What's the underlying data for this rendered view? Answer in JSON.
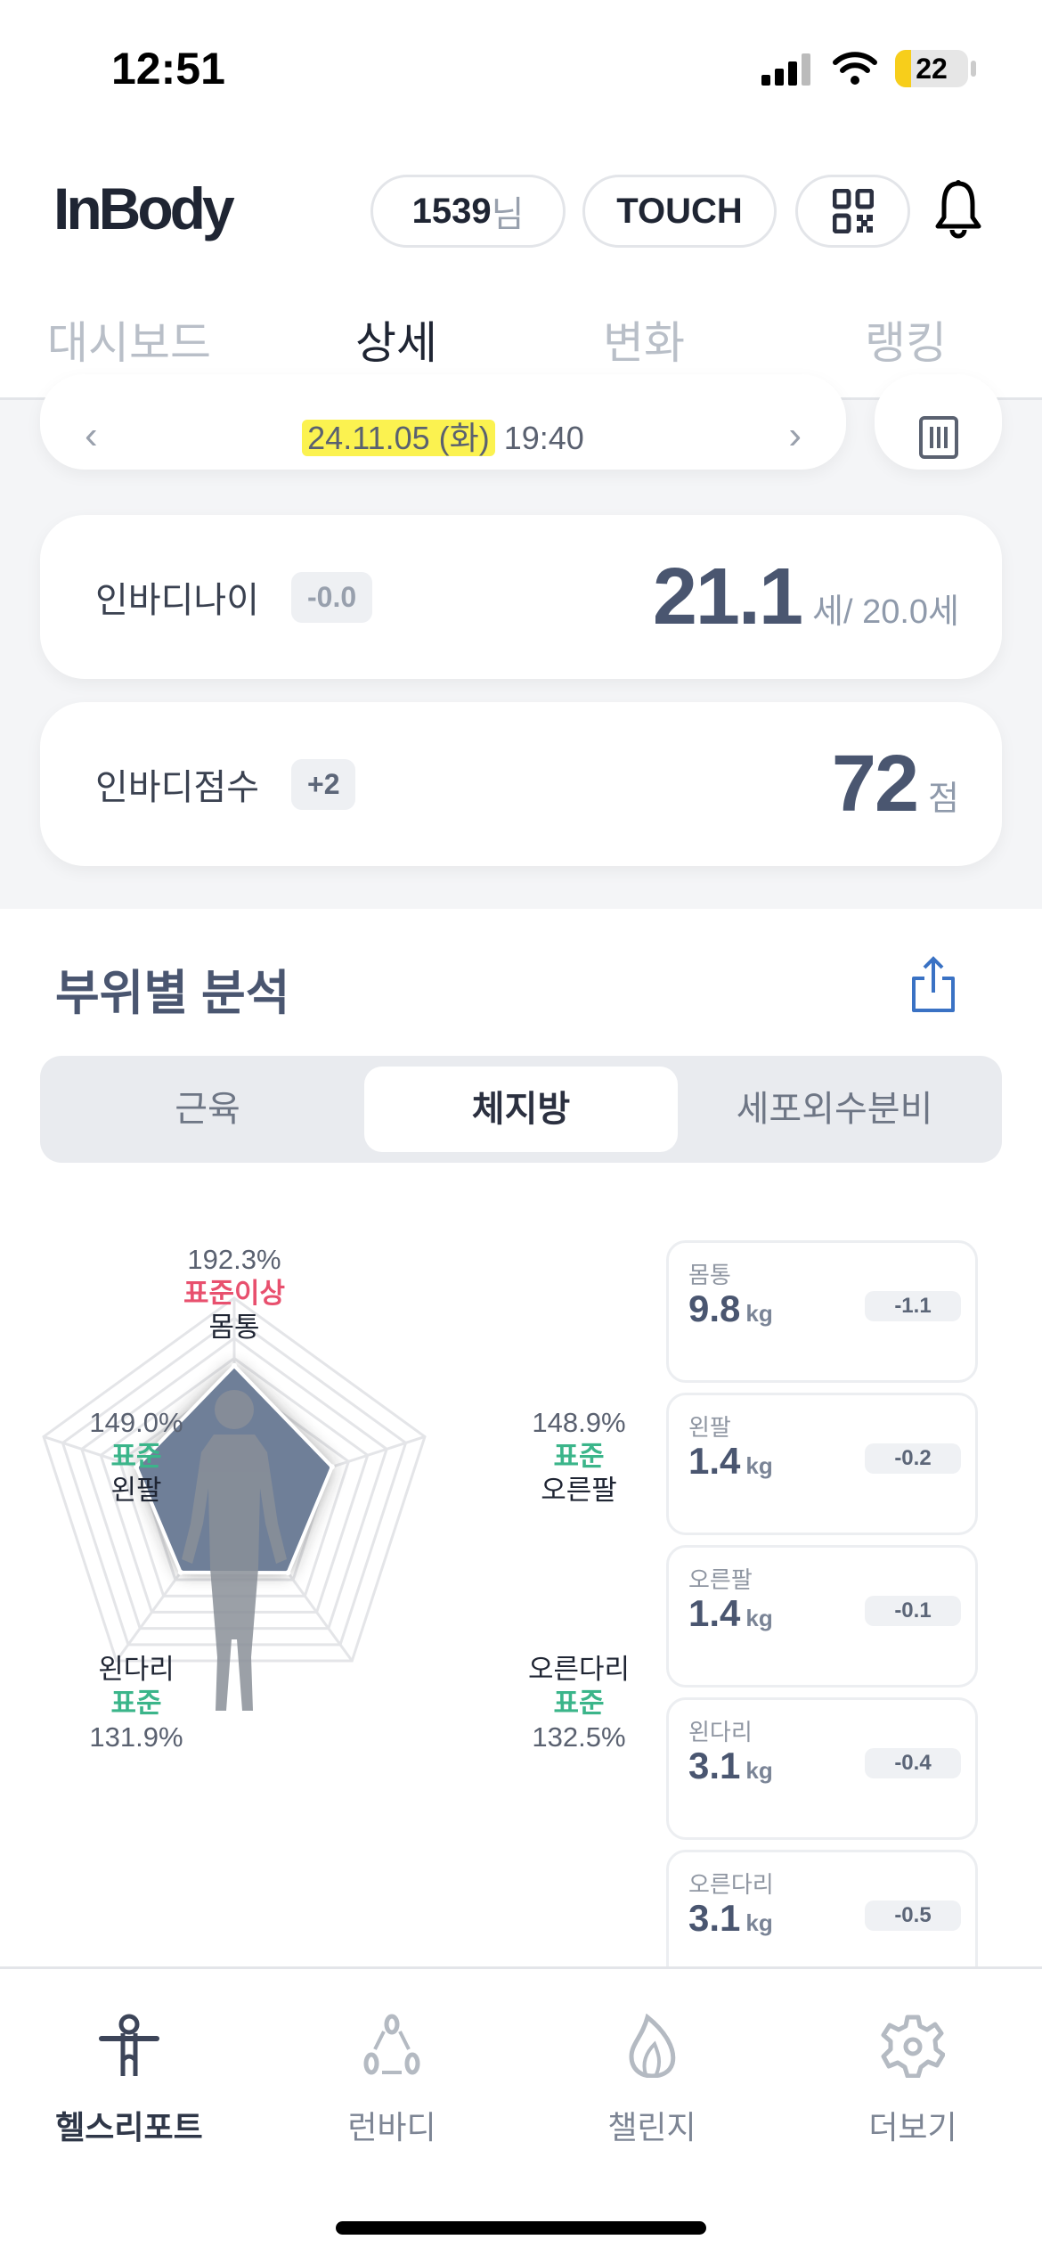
{
  "status_bar": {
    "time": "12:51",
    "battery": "22",
    "battery_level": 0.22
  },
  "header": {
    "logo": "InBody",
    "user_id": "1539",
    "user_suffix": "님",
    "touch_label": "TOUCH",
    "icons": [
      "qr-code-icon",
      "bell-icon"
    ]
  },
  "tabs": [
    {
      "label": "대시보드"
    },
    {
      "label": "상세",
      "active": true
    },
    {
      "label": "변화"
    },
    {
      "label": "랭킹"
    }
  ],
  "date_bar": {
    "date": "24.11.05 (화)",
    "time": "19:40",
    "highlight_color": "#fbf250"
  },
  "metrics": [
    {
      "label": "인바디나이",
      "delta": "-0.0",
      "value": "21.1",
      "unit": "세/ 20.0세"
    },
    {
      "label": "인바디점수",
      "delta": "+2",
      "value": "72",
      "unit": "점"
    }
  ],
  "section": {
    "title": "부위별 분석",
    "segments": [
      "근육",
      "체지방",
      "세포외수분비"
    ],
    "selected_segment": "체지방"
  },
  "chart_data": {
    "type": "radar",
    "axes": [
      {
        "name": "몸통",
        "percent": "192.3%",
        "value": 192.3,
        "status": "표준이상",
        "status_color": "#e8506e"
      },
      {
        "name": "오른팔",
        "percent": "148.9%",
        "value": 148.9,
        "status": "표준",
        "status_color": "#3bb58a"
      },
      {
        "name": "오른다리",
        "percent": "132.5%",
        "value": 132.5,
        "status": "표준",
        "status_color": "#3bb58a"
      },
      {
        "name": "왼다리",
        "percent": "131.9%",
        "value": 131.9,
        "status": "표준",
        "status_color": "#3bb58a"
      },
      {
        "name": "왼팔",
        "percent": "149.0%",
        "value": 149.0,
        "status": "표준",
        "status_color": "#3bb58a"
      }
    ]
  },
  "parts": [
    {
      "name": "몸통",
      "value": "9.8",
      "unit": "kg",
      "delta": "-1.1"
    },
    {
      "name": "왼팔",
      "value": "1.4",
      "unit": "kg",
      "delta": "-0.2"
    },
    {
      "name": "오른팔",
      "value": "1.4",
      "unit": "kg",
      "delta": "-0.1"
    },
    {
      "name": "왼다리",
      "value": "3.1",
      "unit": "kg",
      "delta": "-0.4"
    },
    {
      "name": "오른다리",
      "value": "3.1",
      "unit": "kg",
      "delta": "-0.5"
    }
  ],
  "bottom_nav": [
    {
      "label": "헬스리포트",
      "icon": "person-icon",
      "active": true
    },
    {
      "label": "런바디",
      "icon": "community-icon"
    },
    {
      "label": "챌린지",
      "icon": "flame-icon"
    },
    {
      "label": "더보기",
      "icon": "gear-icon"
    }
  ]
}
